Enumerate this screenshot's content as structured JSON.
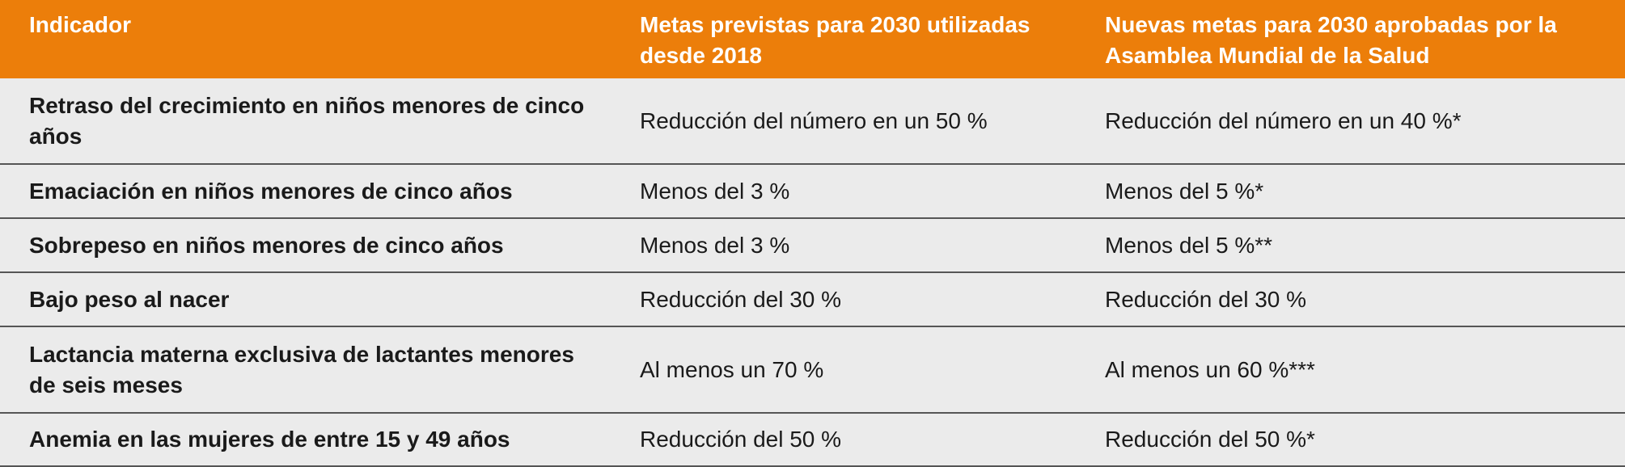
{
  "table": {
    "headers": [
      "Indicador",
      "Metas previstas para 2030 utilizadas desde 2018",
      "Nuevas metas para 2030 aprobadas por la Asamblea Mundial de la Salud"
    ],
    "header_color": "#ec7e0a",
    "row_background": "#ebebeb",
    "rows": [
      {
        "indicator": "Retraso del crecimiento en niños menores de cinco años",
        "target_2018": "Reducción del número en un 50 %",
        "target_new": "Reducción del número en un 40 %*"
      },
      {
        "indicator": "Emaciación en niños menores de cinco años",
        "target_2018": "Menos del 3 %",
        "target_new": "Menos del 5 %*"
      },
      {
        "indicator": "Sobrepeso en niños menores de cinco años",
        "target_2018": "Menos del 3 %",
        "target_new": "Menos del 5 %**"
      },
      {
        "indicator": "Bajo peso al nacer",
        "target_2018": "Reducción del 30 %",
        "target_new": "Reducción del 30 %"
      },
      {
        "indicator": "Lactancia materna exclusiva de lactantes menores de seis meses",
        "target_2018": "Al menos un 70 %",
        "target_new": "Al menos un 60 %***"
      },
      {
        "indicator": "Anemia en las mujeres de entre 15 y 49 años",
        "target_2018": "Reducción del 50 %",
        "target_new": "Reducción del 50 %*"
      }
    ]
  }
}
